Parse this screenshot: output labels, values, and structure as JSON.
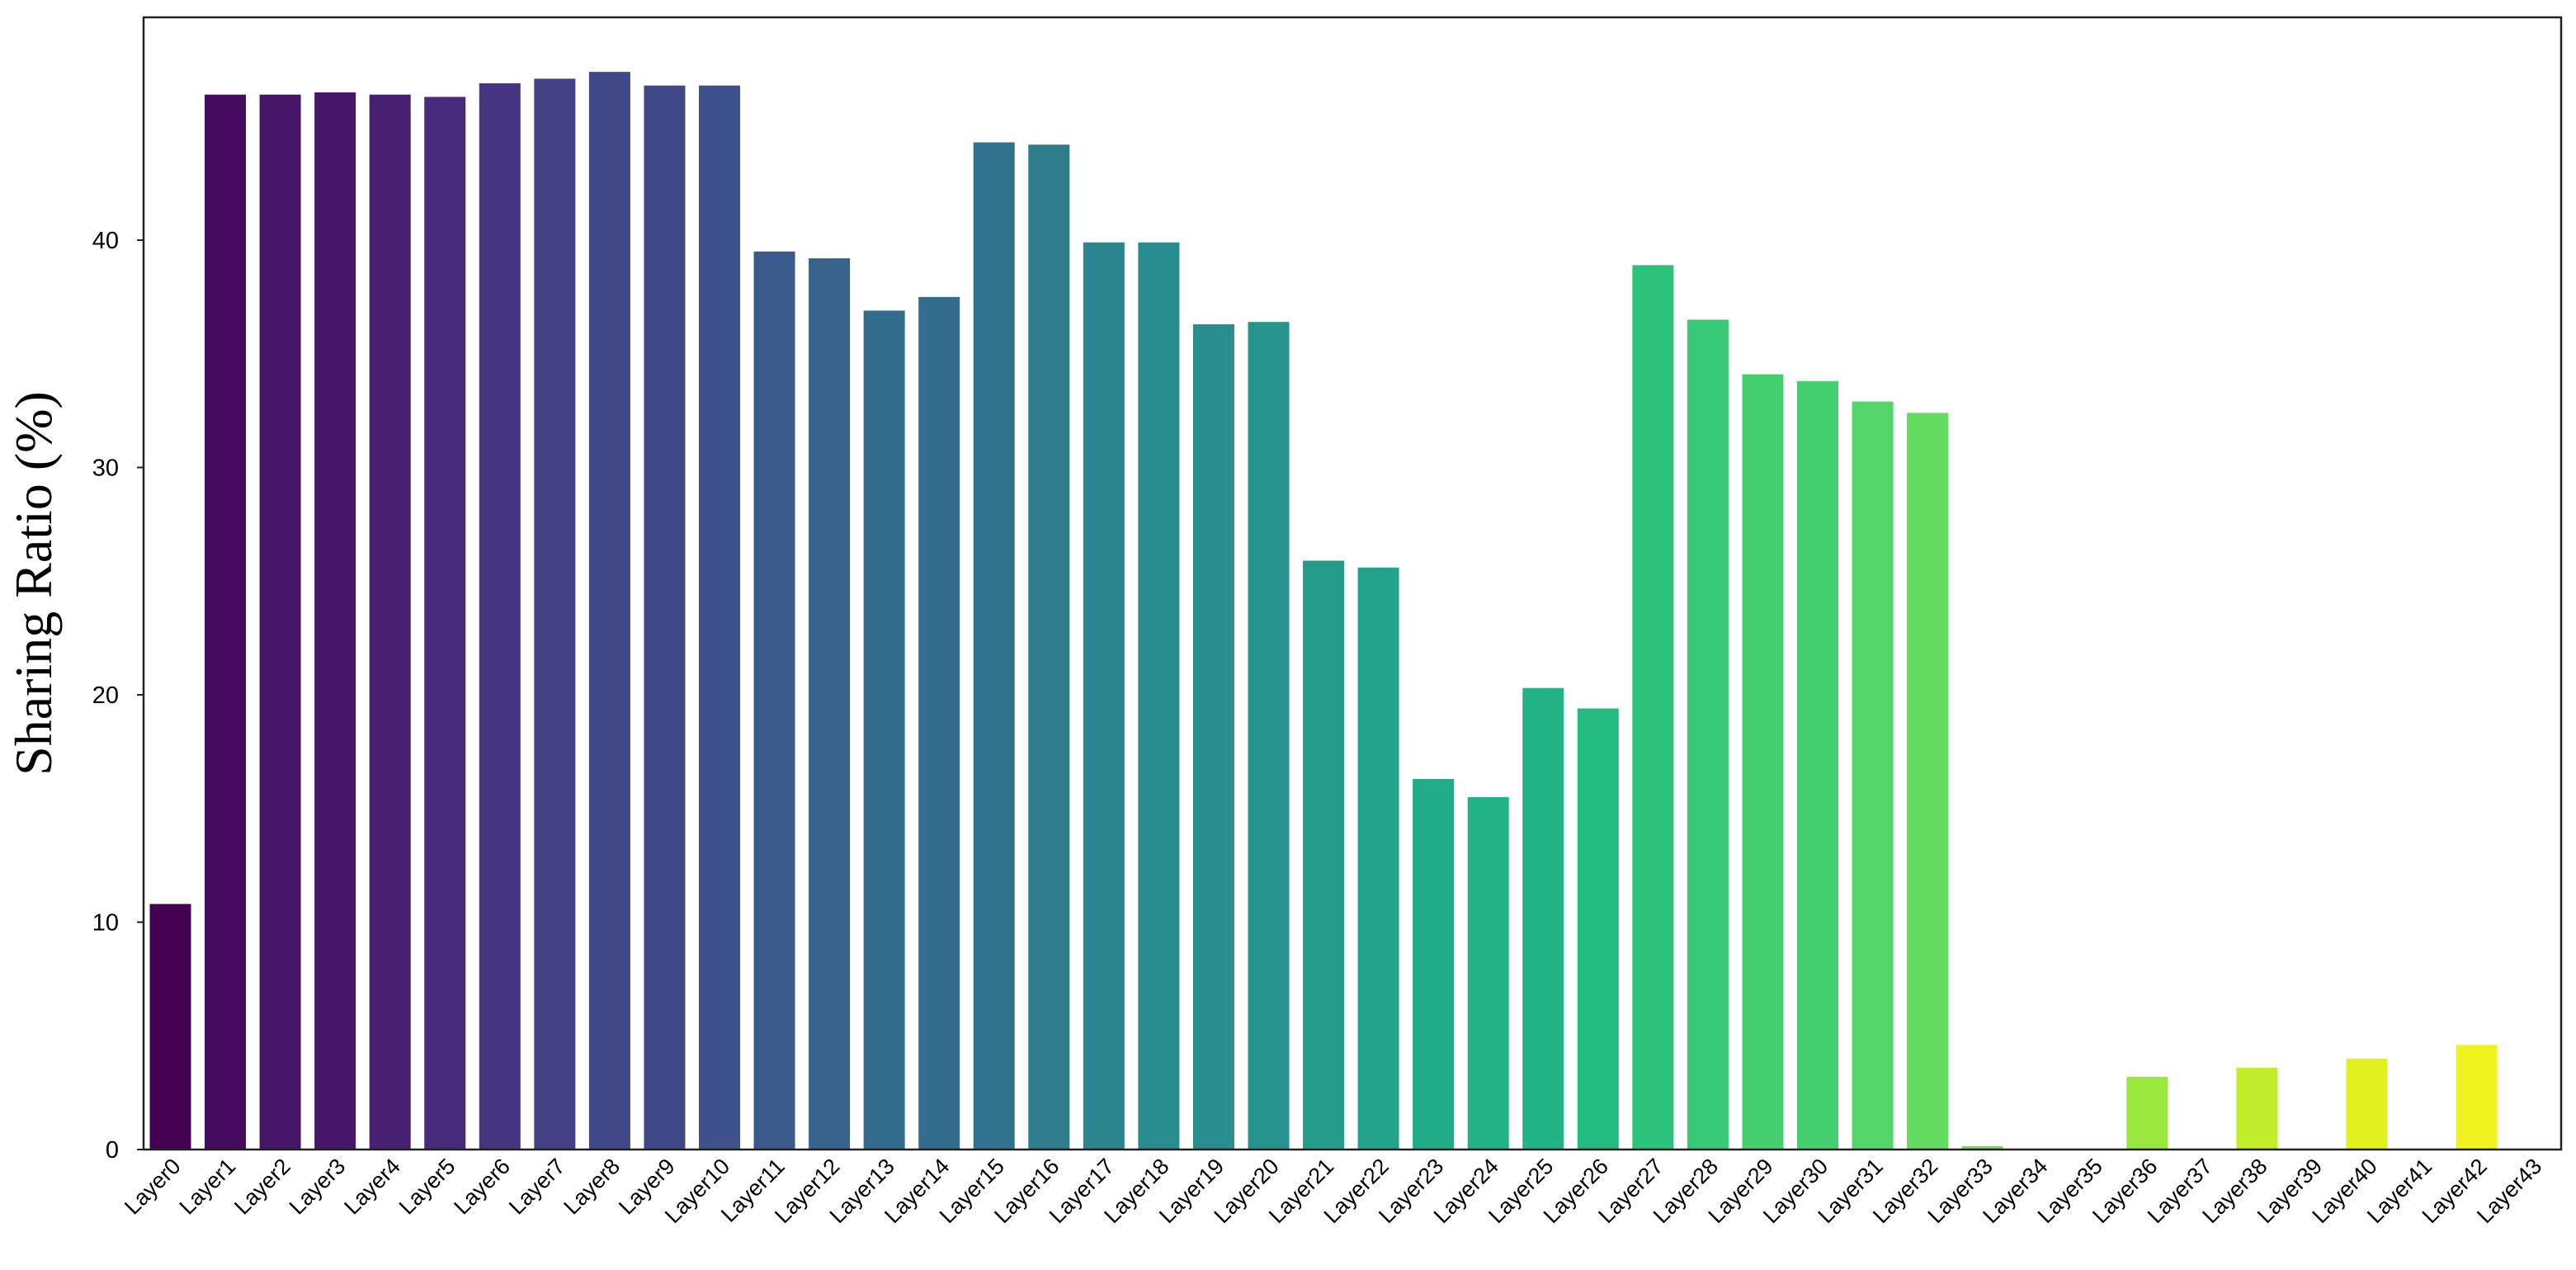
{
  "chart_data": {
    "type": "bar",
    "title": "",
    "xlabel": "",
    "ylabel": "Sharing Ratio (%)",
    "ylim": [
      0,
      49.8
    ],
    "yticks": [
      0,
      10,
      20,
      30,
      40
    ],
    "grid": false,
    "legend": "none",
    "categories": [
      "Layer0",
      "Layer1",
      "Layer2",
      "Layer3",
      "Layer4",
      "Layer5",
      "Layer6",
      "Layer7",
      "Layer8",
      "Layer9",
      "Layer10",
      "Layer11",
      "Layer12",
      "Layer13",
      "Layer14",
      "Layer15",
      "Layer16",
      "Layer17",
      "Layer18",
      "Layer19",
      "Layer20",
      "Layer21",
      "Layer22",
      "Layer23",
      "Layer24",
      "Layer25",
      "Layer26",
      "Layer27",
      "Layer28",
      "Layer29",
      "Layer30",
      "Layer31",
      "Layer32",
      "Layer33",
      "Layer34",
      "Layer35",
      "Layer36",
      "Layer37",
      "Layer38",
      "Layer39",
      "Layer40",
      "Layer41",
      "Layer42",
      "Layer43"
    ],
    "values": [
      10.8,
      46.4,
      46.4,
      46.5,
      46.4,
      46.3,
      46.9,
      47.1,
      47.4,
      46.8,
      46.8,
      39.5,
      39.2,
      36.9,
      37.5,
      44.3,
      44.2,
      39.9,
      39.9,
      36.3,
      36.4,
      25.9,
      25.6,
      16.3,
      15.5,
      20.3,
      19.4,
      38.9,
      36.5,
      34.1,
      33.8,
      32.9,
      32.4,
      0.15,
      0,
      0,
      3.2,
      0,
      3.6,
      0,
      4.0,
      0,
      4.6,
      0
    ],
    "colormap": "viridis",
    "colors": [
      "#440154",
      "#450b5e",
      "#471669",
      "#482072",
      "#472a7a",
      "#463580",
      "#443f85",
      "#414888",
      "#3e518a",
      "#3a5a8c",
      "#37638d",
      "#346c8e",
      "#31738e",
      "#2e7c8e",
      "#2c848e",
      "#298c8e",
      "#27938d",
      "#259c8b",
      "#23a48a",
      "#21ab87",
      "#21b384",
      "#24bb81",
      "#2dc27c",
      "#38c977",
      "#45cf71",
      "#54d569",
      "#64db61",
      "#75e056",
      "#88e44b",
      "#9ae740",
      "#adeb34",
      "#c0ee2a",
      "#d1ef22",
      "#e2f020",
      "#f2f21e",
      "#fde725"
    ]
  }
}
